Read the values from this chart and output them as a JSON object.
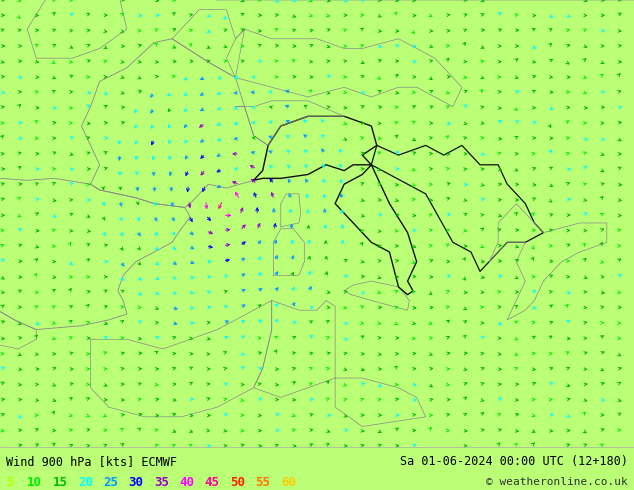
{
  "title_left": "Wind 900 hPa [kts] ECMWF",
  "title_right": "Sa 01-06-2024 00:00 UTC (12+180)",
  "copyright": "© weatheronline.co.uk",
  "legend_values": [
    5,
    10,
    15,
    20,
    25,
    30,
    35,
    40,
    45,
    50,
    55,
    60
  ],
  "legend_colors": [
    "#bbff00",
    "#00ee00",
    "#00bb00",
    "#00ffff",
    "#0099ff",
    "#0000ff",
    "#9900cc",
    "#ff00ff",
    "#ff0099",
    "#ff2200",
    "#ff7700",
    "#ffcc00"
  ],
  "land_color": "#bbff77",
  "sea_color": "#cccccc",
  "border_color_main": "#111111",
  "border_color_sub": "#888888",
  "fig_width": 6.34,
  "fig_height": 4.9,
  "dpi": 100,
  "bottom_bar_color": "#cccccc",
  "title_fontsize": 8.5,
  "legend_fontsize": 9
}
